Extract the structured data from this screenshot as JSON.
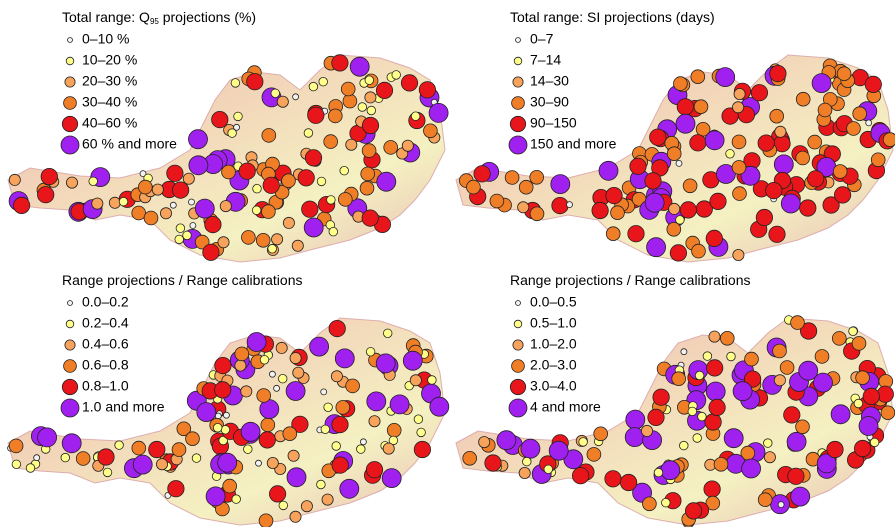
{
  "panels": [
    {
      "title": [
        {
          "text": "Total range: Q"
        },
        {
          "text": "95",
          "sub": true
        },
        {
          "text": " projections (%)"
        }
      ],
      "legend": [
        {
          "label": "0–10 %",
          "color": "#f2f2f2"
        },
        {
          "label": "10–20 %",
          "color": "#ffff8a"
        },
        {
          "label": "20–30 %",
          "color": "#f7a35c"
        },
        {
          "label": "30–40 %",
          "color": "#f07e26"
        },
        {
          "label": "40–60 %",
          "color": "#e8161b"
        },
        {
          "label": "60 % and more",
          "color": "#a020f0"
        }
      ]
    },
    {
      "title": [
        {
          "text": "Total range: SI projections (days)"
        }
      ],
      "legend": [
        {
          "label": "0–7",
          "color": "#f2f2f2"
        },
        {
          "label": "7–14",
          "color": "#ffff8a"
        },
        {
          "label": "14–30",
          "color": "#f7a35c"
        },
        {
          "label": "30–90",
          "color": "#f07e26"
        },
        {
          "label": "90–150",
          "color": "#e8161b"
        },
        {
          "label": "150 and more",
          "color": "#a020f0"
        }
      ]
    },
    {
      "title": [
        {
          "text": "Range projections / Range calibrations"
        }
      ],
      "legend": [
        {
          "label": "0.0–0.2",
          "color": "#f2f2f2"
        },
        {
          "label": "0.2–0.4",
          "color": "#ffff8a"
        },
        {
          "label": "0.4–0.6",
          "color": "#f7a35c"
        },
        {
          "label": "0.6–0.8",
          "color": "#f07e26"
        },
        {
          "label": "0.8–1.0",
          "color": "#e8161b"
        },
        {
          "label": "1.0 and more",
          "color": "#a020f0"
        }
      ]
    },
    {
      "title": [
        {
          "text": "Range projections / Range calibrations"
        }
      ],
      "legend": [
        {
          "label": "0.0–0.5",
          "color": "#f2f2f2"
        },
        {
          "label": "0.5–1.0",
          "color": "#ffff8a"
        },
        {
          "label": "1.0–2.0",
          "color": "#f7a35c"
        },
        {
          "label": "2.0–3.0",
          "color": "#f07e26"
        },
        {
          "label": "3.0–4.0",
          "color": "#e8161b"
        },
        {
          "label": "4 and more",
          "color": "#a020f0"
        }
      ]
    }
  ]
}
